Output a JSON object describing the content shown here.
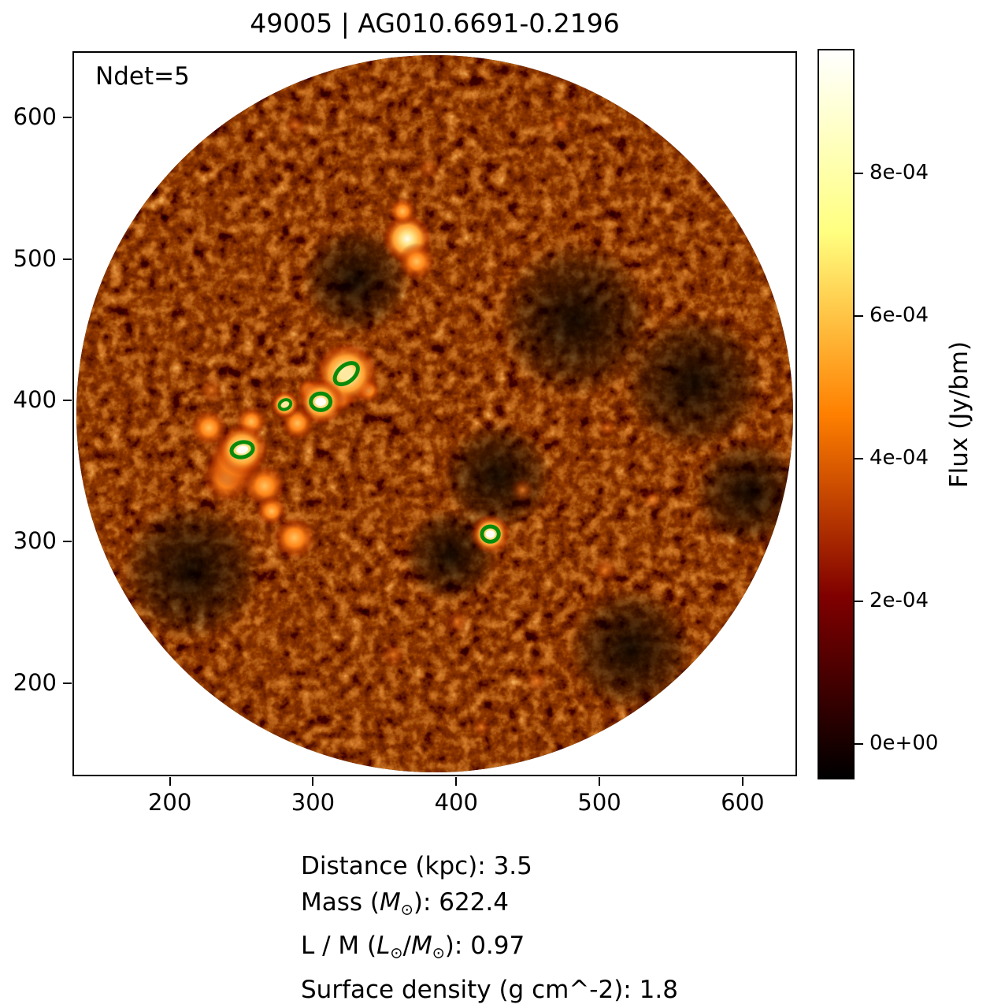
{
  "figure": {
    "title": "49005 | AG010.6691-0.2196",
    "ndet_annotation": "Ndet=5"
  },
  "axes": {
    "x_tick_labels": [
      "200",
      "300",
      "400",
      "500",
      "600"
    ],
    "y_tick_labels": [
      "600",
      "500",
      "400",
      "300",
      "200"
    ]
  },
  "colorbar": {
    "label": "Flux (Jy/bm)",
    "tick_labels": [
      "8e-04",
      "6e-04",
      "4e-04",
      "2e-04",
      "0e+00"
    ]
  },
  "footer": {
    "lines": [
      [
        {
          "t": "Distance (kpc): 3.5"
        }
      ],
      [
        {
          "t": "Mass ("
        },
        {
          "t": "M",
          "s": "i"
        },
        {
          "t": "⊙",
          "s": "sub"
        },
        {
          "t": "): 622.4"
        }
      ],
      [
        {
          "t": "L / M ("
        },
        {
          "t": "L",
          "s": "i"
        },
        {
          "t": "⊙",
          "s": "sub"
        },
        {
          "t": "/"
        },
        {
          "t": "M",
          "s": "i"
        },
        {
          "t": "⊙",
          "s": "sub"
        },
        {
          "t": "): 0.97"
        }
      ],
      [
        {
          "t": "Surface density (g cm^-2): 1.8"
        }
      ]
    ]
  },
  "chart_data": {
    "type": "heatmap",
    "title": "49005 | AG010.6691-0.2196",
    "annotation": "Ndet=5",
    "x_range": [
      132,
      638
    ],
    "y_range": [
      134,
      647
    ],
    "x_ticks": [
      200,
      300,
      400,
      500,
      600
    ],
    "y_ticks": [
      600,
      500,
      400,
      300,
      200
    ],
    "grid": false,
    "field_mask": "circular field of view; pixels outside circle are blank white",
    "colormap": "afmhot (black - dark red - orange - yellow - white)",
    "colorbar": {
      "label": "Flux (Jy/bm)",
      "ticks": [
        0.0008,
        0.0006,
        0.0004,
        0.0002,
        0.0
      ],
      "tick_labels": [
        "8e-04",
        "6e-04",
        "4e-04",
        "2e-04",
        "0e+00"
      ],
      "clim": [
        -5e-05,
        0.000974
      ],
      "position": "right"
    },
    "n_detections": 5,
    "marker_color": "#0a8a0a",
    "detections": [
      {
        "x": 323,
        "y": 419,
        "a": 9.4,
        "b": 5.8,
        "angle": 40,
        "core": "yellow"
      },
      {
        "x": 280,
        "y": 397,
        "a": 4.2,
        "b": 3.3,
        "angle": 25,
        "core": "yellow"
      },
      {
        "x": 305,
        "y": 399,
        "a": 6.9,
        "b": 5.9,
        "angle": 0,
        "core": "white"
      },
      {
        "x": 250,
        "y": 365,
        "a": 7.6,
        "b": 5.3,
        "angle": 12,
        "core": "white"
      },
      {
        "x": 424,
        "y": 305,
        "a": 5.9,
        "b": 5.4,
        "angle": 0,
        "core": "white"
      }
    ],
    "stats": {
      "distance_kpc": 3.5,
      "mass_msun": 622.4,
      "luminosity_to_mass_lsun_per_msun": 0.97,
      "surface_density_g_cm2": 1.8
    }
  }
}
